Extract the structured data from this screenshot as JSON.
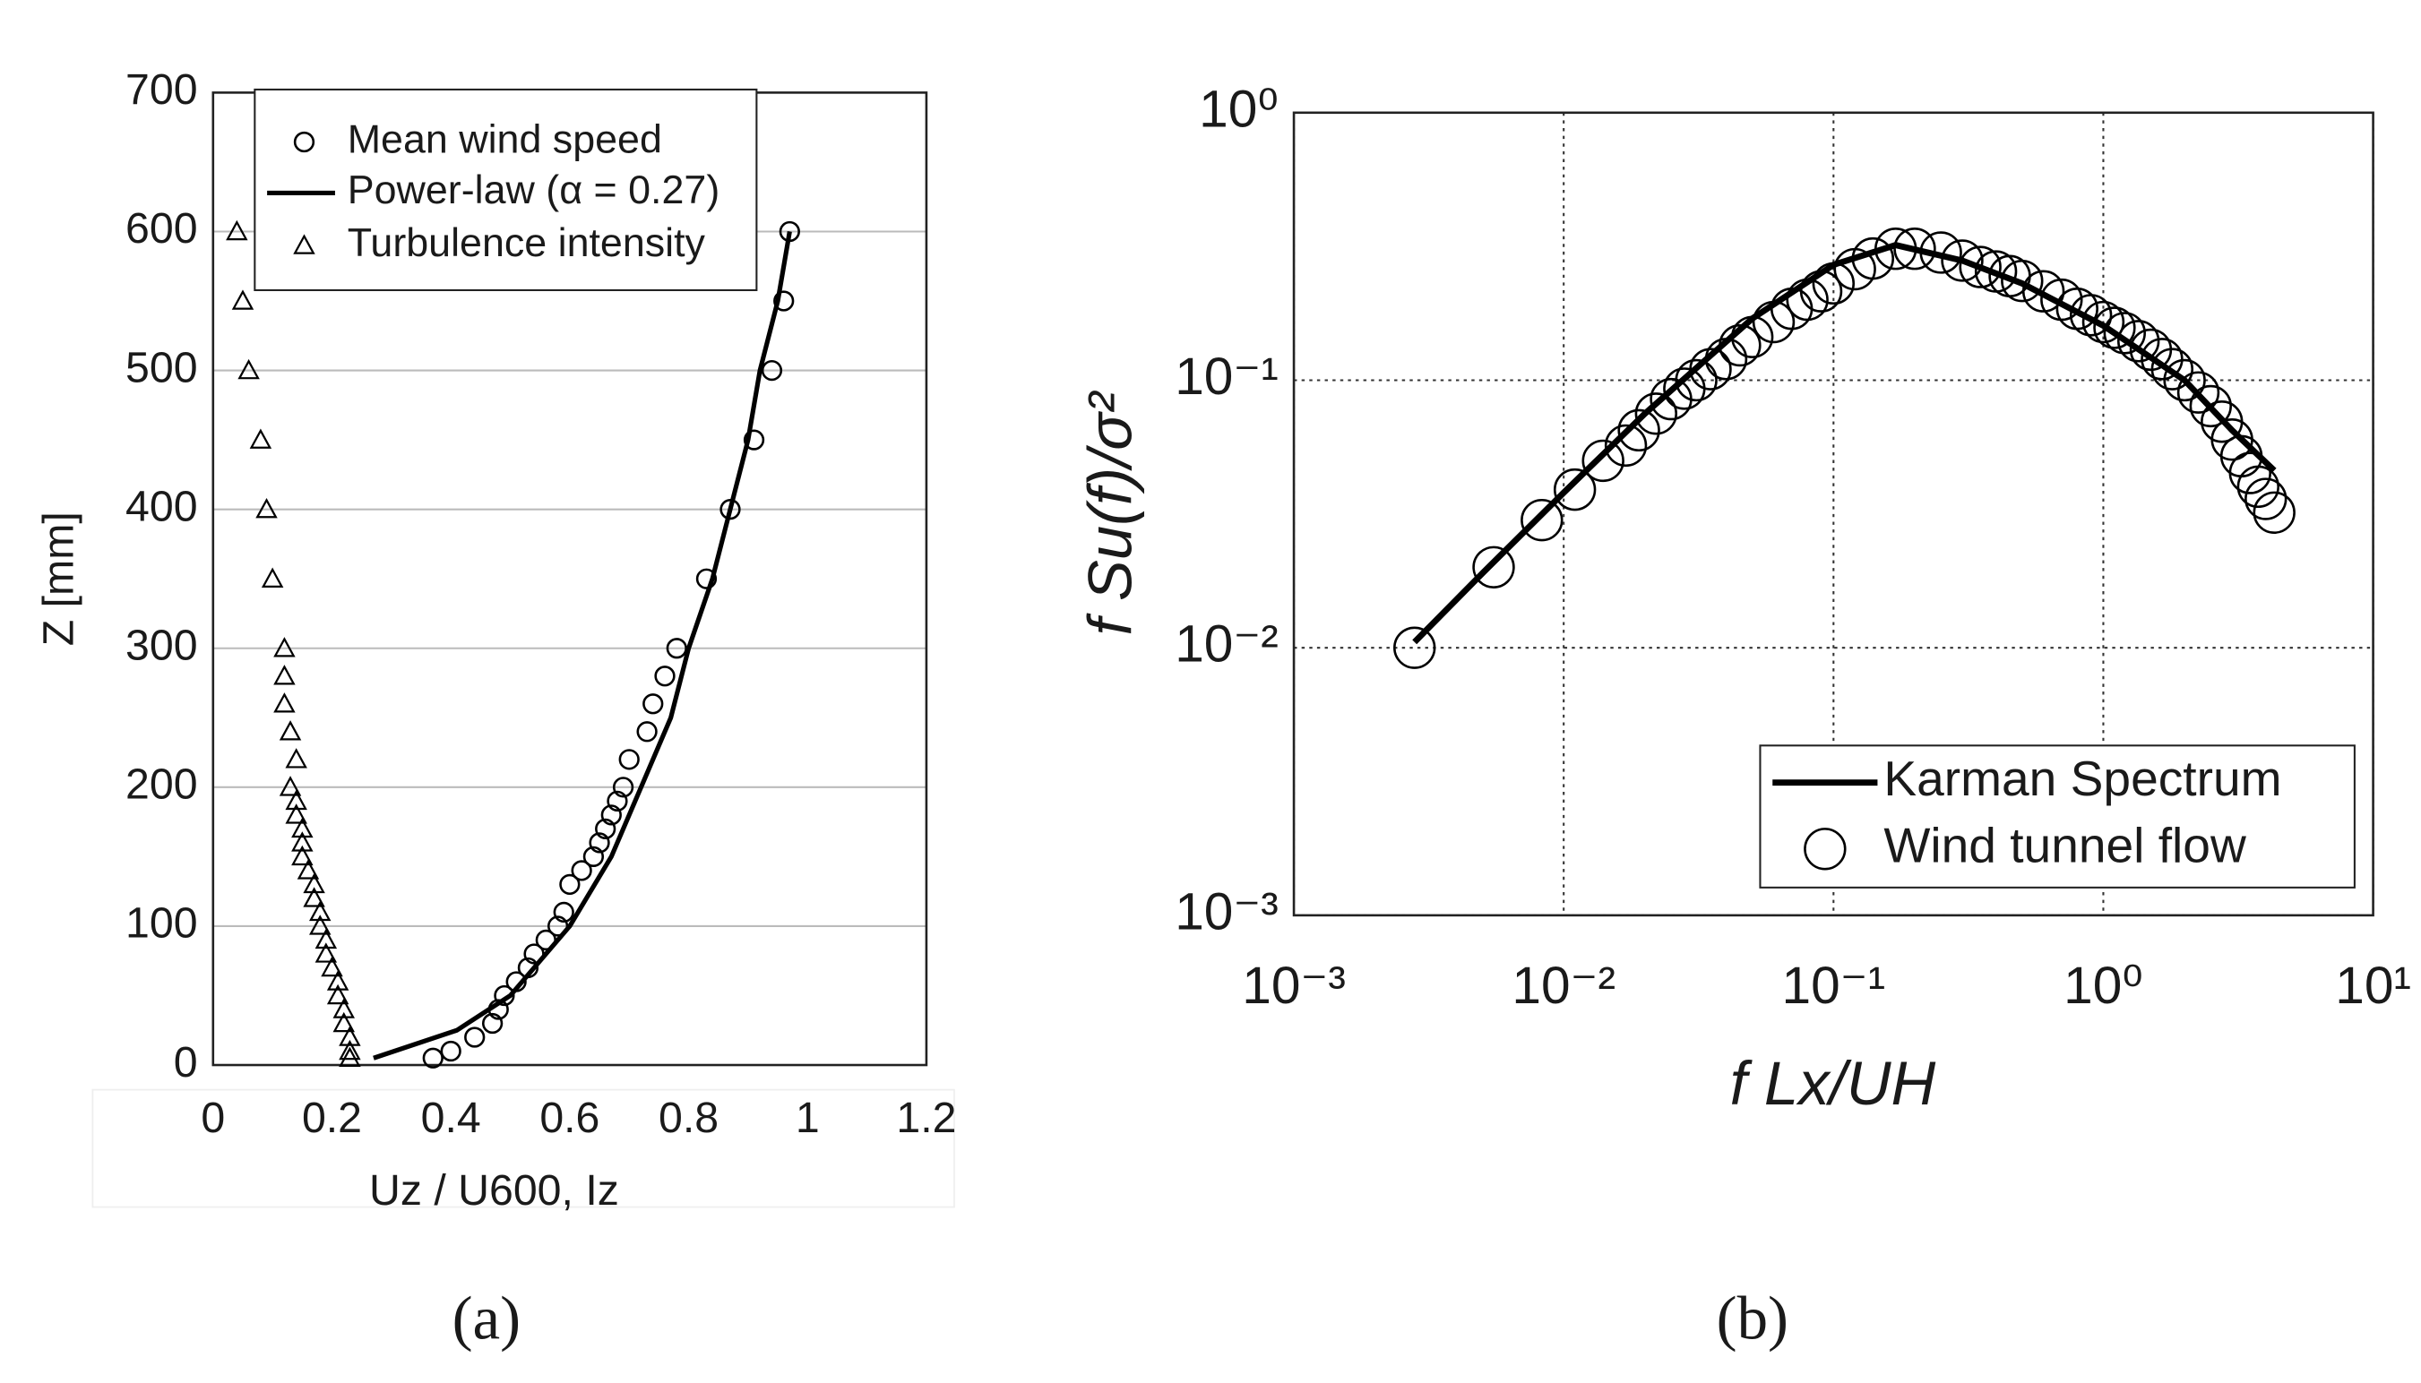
{
  "chart_data": [
    {
      "type": "scatter",
      "caption": "(a)",
      "xlabel": "Uz / U600, Iz",
      "ylabel": "Z [mm]",
      "xlim": [
        0,
        1.2
      ],
      "ylim": [
        0,
        700
      ],
      "xticks": [
        0,
        0.2,
        0.4,
        0.6,
        0.8,
        1,
        1.2
      ],
      "yticks": [
        0,
        100,
        200,
        300,
        400,
        500,
        600,
        700
      ],
      "grid": "y",
      "legend": "upper left",
      "series": [
        {
          "name": "Mean wind speed",
          "color": "#000000",
          "marker": "circle",
          "x": [
            0.37,
            0.4,
            0.44,
            0.47,
            0.48,
            0.49,
            0.51,
            0.53,
            0.54,
            0.56,
            0.58,
            0.59,
            0.6,
            0.62,
            0.64,
            0.65,
            0.66,
            0.67,
            0.68,
            0.69,
            0.7,
            0.73,
            0.74,
            0.76,
            0.78,
            0.83,
            0.87,
            0.91,
            0.94,
            0.96,
            0.97
          ],
          "y": [
            5,
            10,
            20,
            30,
            40,
            50,
            60,
            70,
            80,
            90,
            100,
            110,
            130,
            140,
            150,
            160,
            170,
            180,
            190,
            200,
            220,
            240,
            260,
            280,
            300,
            350,
            400,
            450,
            500,
            550,
            600
          ]
        },
        {
          "name": "Power-law (α = 0.27)",
          "color": "#000000",
          "marker": "line",
          "x": [
            0.27,
            0.41,
            0.5,
            0.6,
            0.67,
            0.72,
            0.77,
            0.8,
            0.84,
            0.87,
            0.9,
            0.92,
            0.95,
            0.97
          ],
          "y": [
            5,
            25,
            50,
            100,
            150,
            200,
            250,
            300,
            350,
            400,
            450,
            500,
            550,
            600
          ]
        },
        {
          "name": "Turbulence intensity",
          "color": "#000000",
          "marker": "triangle",
          "x": [
            0.04,
            0.05,
            0.06,
            0.08,
            0.09,
            0.1,
            0.12,
            0.12,
            0.12,
            0.13,
            0.14,
            0.13,
            0.14,
            0.14,
            0.15,
            0.15,
            0.15,
            0.16,
            0.17,
            0.17,
            0.18,
            0.18,
            0.19,
            0.19,
            0.2,
            0.21,
            0.21,
            0.22,
            0.22,
            0.23,
            0.23,
            0.23
          ],
          "y": [
            600,
            550,
            500,
            450,
            400,
            350,
            300,
            280,
            260,
            240,
            220,
            200,
            190,
            180,
            170,
            160,
            150,
            140,
            130,
            120,
            110,
            100,
            90,
            80,
            70,
            60,
            50,
            40,
            30,
            20,
            10,
            5
          ]
        }
      ]
    },
    {
      "type": "scatter",
      "caption": "(b)",
      "xlabel": "f Lx/UH",
      "ylabel": "f Su(f)/σ²",
      "xscale": "log",
      "yscale": "log",
      "xlim": [
        0.001,
        10
      ],
      "ylim": [
        0.001,
        1
      ],
      "xticks": [
        {
          "value": 0.001,
          "label": "10⁻³"
        },
        {
          "value": 0.01,
          "label": "10⁻²"
        },
        {
          "value": 0.1,
          "label": "10⁻¹"
        },
        {
          "value": 1,
          "label": "10⁰"
        },
        {
          "value": 10,
          "label": "10¹"
        }
      ],
      "yticks": [
        {
          "value": 0.001,
          "label": "10⁻³"
        },
        {
          "value": 0.01,
          "label": "10⁻²"
        },
        {
          "value": 0.1,
          "label": "10⁻¹"
        },
        {
          "value": 1,
          "label": "10⁰"
        }
      ],
      "grid": "both",
      "grid_style": "dotted",
      "legend": "lower right",
      "series": [
        {
          "name": "Karman Spectrum",
          "color": "#000000",
          "marker": "line",
          "x": [
            0.0028,
            0.005,
            0.01,
            0.02,
            0.05,
            0.1,
            0.17,
            0.3,
            0.5,
            1,
            2,
            3,
            4.3
          ],
          "y": [
            0.0105,
            0.019,
            0.038,
            0.075,
            0.17,
            0.27,
            0.32,
            0.28,
            0.23,
            0.16,
            0.1,
            0.065,
            0.046
          ]
        },
        {
          "name": "Wind tunnel flow",
          "color": "#000000",
          "marker": "circle",
          "x": [
            0.0028,
            0.0055,
            0.0083,
            0.011,
            0.014,
            0.017,
            0.019,
            0.022,
            0.025,
            0.028,
            0.031,
            0.035,
            0.04,
            0.045,
            0.05,
            0.06,
            0.07,
            0.08,
            0.09,
            0.1,
            0.12,
            0.14,
            0.17,
            0.2,
            0.25,
            0.3,
            0.35,
            0.4,
            0.45,
            0.5,
            0.6,
            0.7,
            0.8,
            0.9,
            1,
            1.1,
            1.2,
            1.35,
            1.5,
            1.65,
            1.8,
            2,
            2.25,
            2.5,
            2.75,
            3,
            3.25,
            3.5,
            3.75,
            4,
            4.3
          ],
          "y": [
            0.01,
            0.02,
            0.03,
            0.039,
            0.05,
            0.057,
            0.065,
            0.075,
            0.085,
            0.093,
            0.1,
            0.11,
            0.12,
            0.135,
            0.145,
            0.165,
            0.185,
            0.2,
            0.215,
            0.23,
            0.26,
            0.285,
            0.31,
            0.31,
            0.3,
            0.28,
            0.265,
            0.255,
            0.245,
            0.235,
            0.215,
            0.2,
            0.185,
            0.175,
            0.165,
            0.157,
            0.15,
            0.14,
            0.13,
            0.12,
            0.11,
            0.1,
            0.09,
            0.08,
            0.07,
            0.06,
            0.052,
            0.045,
            0.04,
            0.036,
            0.032
          ]
        }
      ]
    }
  ]
}
